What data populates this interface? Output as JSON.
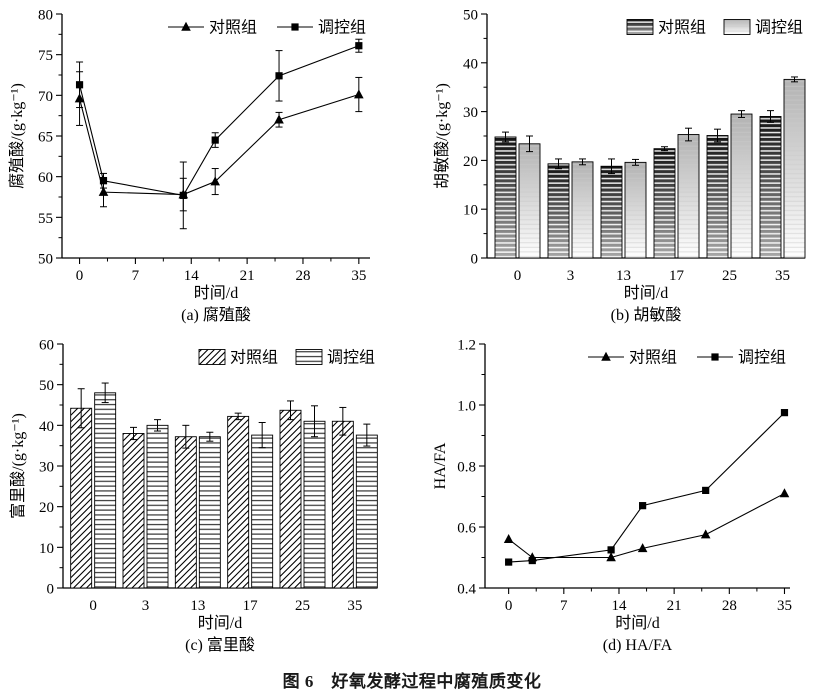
{
  "figure": {
    "caption": "图 6　好氧发酵过程中腐殖质变化"
  },
  "legend": {
    "control_label": "对照组",
    "regulated_label": "调控组"
  },
  "chart_data": [
    {
      "id": "a",
      "type": "line",
      "subtitle": "(a) 腐殖酸",
      "xlabel": "时间/d",
      "ylabel": "腐殖酸/(g·kg⁻¹)",
      "x": [
        0,
        3,
        13,
        17,
        25,
        35
      ],
      "xticks": [
        0,
        7,
        14,
        21,
        28,
        35
      ],
      "xlim": [
        -2.2,
        36.4
      ],
      "ylim": [
        50,
        80
      ],
      "ytick_step": 5,
      "ytick_decimals": 0,
      "grid": false,
      "legend_position": "top-right-inside",
      "series": [
        {
          "name": "对照组",
          "marker": "triangle",
          "values": [
            69.6,
            58.1,
            57.8,
            59.4,
            67.0,
            70.1
          ],
          "errors": [
            3.3,
            1.8,
            2.0,
            1.6,
            0.9,
            2.1
          ]
        },
        {
          "name": "调控组",
          "marker": "square",
          "values": [
            71.3,
            59.5,
            57.7,
            64.5,
            72.4,
            76.1
          ],
          "errors": [
            2.8,
            0.9,
            4.1,
            0.9,
            3.1,
            0.8
          ]
        }
      ]
    },
    {
      "id": "b",
      "type": "bar",
      "subtitle": "(b) 胡敏酸",
      "xlabel": "时间/d",
      "ylabel": "胡敏酸/(g·kg⁻¹)",
      "categories": [
        "0",
        "3",
        "13",
        "17",
        "25",
        "35"
      ],
      "ylim": [
        0,
        50
      ],
      "ytick_step": 10,
      "ytick_decimals": 0,
      "grid": false,
      "legend_position": "top-right-inside",
      "series": [
        {
          "name": "对照组",
          "pattern": "dark-horizontal-stripes",
          "values": [
            24.8,
            19.3,
            18.8,
            22.4,
            25.1,
            29.0
          ],
          "errors": [
            1.0,
            1.0,
            1.5,
            0.4,
            1.3,
            1.2
          ]
        },
        {
          "name": "调控组",
          "pattern": "light-gradient",
          "values": [
            23.4,
            19.7,
            19.6,
            25.3,
            29.5,
            36.6
          ],
          "errors": [
            1.6,
            0.6,
            0.6,
            1.3,
            0.7,
            0.5
          ]
        }
      ]
    },
    {
      "id": "c",
      "type": "bar",
      "subtitle": "(c) 富里酸",
      "xlabel": "时间/d",
      "ylabel": "富里酸/(g·kg⁻¹)",
      "categories": [
        "0",
        "3",
        "13",
        "17",
        "25",
        "35"
      ],
      "ylim": [
        0,
        60
      ],
      "ytick_step": 10,
      "ytick_decimals": 0,
      "grid": false,
      "legend_position": "top-right-inside",
      "series": [
        {
          "name": "对照组",
          "pattern": "diagonal-hatch",
          "values": [
            44.2,
            38.0,
            37.2,
            42.2,
            43.7,
            41.0
          ],
          "errors": [
            4.8,
            1.5,
            2.8,
            0.8,
            2.3,
            3.4
          ]
        },
        {
          "name": "调控组",
          "pattern": "horizontal-lines",
          "values": [
            48.0,
            40.0,
            37.2,
            37.6,
            41.0,
            37.6
          ],
          "errors": [
            2.4,
            1.4,
            1.1,
            3.1,
            3.8,
            2.7
          ]
        }
      ]
    },
    {
      "id": "d",
      "type": "line",
      "subtitle": "(d) HA/FA",
      "xlabel": "时间/d",
      "ylabel": "HA/FA",
      "x": [
        0,
        3,
        13,
        17,
        25,
        35
      ],
      "xticks": [
        0,
        7,
        14,
        21,
        28,
        35
      ],
      "xlim": [
        -3.0,
        35.7
      ],
      "ylim": [
        0.4,
        1.2
      ],
      "ytick_step": 0.2,
      "ytick_decimals": 1,
      "grid": false,
      "legend_position": "top-right-inside",
      "series": [
        {
          "name": "对照组",
          "marker": "triangle",
          "values": [
            0.56,
            0.5,
            0.5,
            0.53,
            0.575,
            0.71
          ]
        },
        {
          "name": "调控组",
          "marker": "square",
          "values": [
            0.485,
            0.49,
            0.525,
            0.67,
            0.72,
            0.975
          ]
        }
      ]
    }
  ]
}
